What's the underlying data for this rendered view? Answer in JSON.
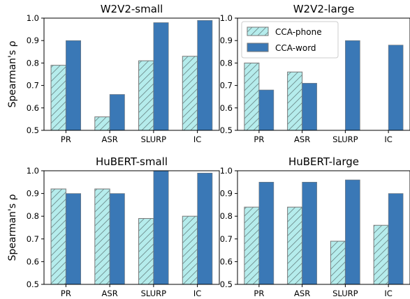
{
  "legend": {
    "placement": "upper-left",
    "entries": [
      {
        "name": "CCA-phone",
        "style": "hatched",
        "color": "#b5ecec"
      },
      {
        "name": "CCA-word",
        "style": "solid",
        "color": "#3a78b6"
      }
    ]
  },
  "shared": {
    "ylabel": "Spearman's ρ",
    "categories": [
      "PR",
      "ASR",
      "SLURP",
      "IC"
    ],
    "ylim": [
      0.5,
      1.0
    ],
    "yticks": [
      "0.5",
      "0.6",
      "0.7",
      "0.8",
      "0.9",
      "1.0"
    ]
  },
  "colors": {
    "phone_fill": "#b5ecec",
    "word_fill": "#3a78b6",
    "bar_edge": "#777777",
    "axis": "#000000"
  },
  "chart_data": [
    {
      "type": "bar",
      "title": "W2V2-small",
      "categories": [
        "PR",
        "ASR",
        "SLURP",
        "IC"
      ],
      "ylim": [
        0.5,
        1.0
      ],
      "ylabel": "Spearman's ρ",
      "series": [
        {
          "name": "CCA-phone",
          "values": [
            0.79,
            0.56,
            0.81,
            0.83
          ]
        },
        {
          "name": "CCA-word",
          "values": [
            0.9,
            0.66,
            0.98,
            0.99
          ]
        }
      ]
    },
    {
      "type": "bar",
      "title": "W2V2-large",
      "categories": [
        "PR",
        "ASR",
        "SLURP",
        "IC"
      ],
      "ylim": [
        0.5,
        1.0
      ],
      "ylabel": "",
      "series": [
        {
          "name": "CCA-phone",
          "values": [
            0.8,
            0.76,
            null,
            null
          ]
        },
        {
          "name": "CCA-word",
          "values": [
            0.68,
            0.71,
            0.9,
            0.88
          ]
        }
      ]
    },
    {
      "type": "bar",
      "title": "HuBERT-small",
      "categories": [
        "PR",
        "ASR",
        "SLURP",
        "IC"
      ],
      "ylim": [
        0.5,
        1.0
      ],
      "ylabel": "Spearman's ρ",
      "series": [
        {
          "name": "CCA-phone",
          "values": [
            0.92,
            0.92,
            0.79,
            0.8
          ]
        },
        {
          "name": "CCA-word",
          "values": [
            0.9,
            0.9,
            1.0,
            0.99
          ]
        }
      ]
    },
    {
      "type": "bar",
      "title": "HuBERT-large",
      "categories": [
        "PR",
        "ASR",
        "SLURP",
        "IC"
      ],
      "ylim": [
        0.5,
        1.0
      ],
      "ylabel": "",
      "series": [
        {
          "name": "CCA-phone",
          "values": [
            0.84,
            0.84,
            0.69,
            0.76
          ]
        },
        {
          "name": "CCA-word",
          "values": [
            0.95,
            0.95,
            0.96,
            0.9
          ]
        }
      ]
    }
  ]
}
